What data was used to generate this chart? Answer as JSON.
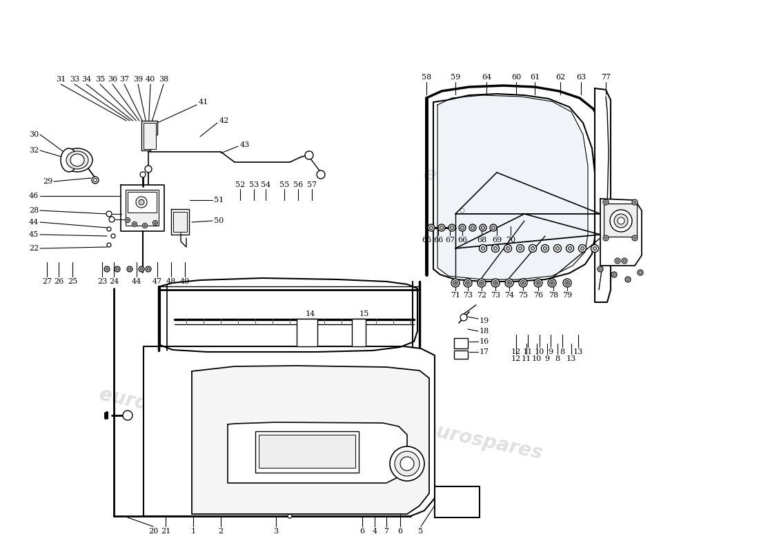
{
  "bg_color": "#ffffff",
  "watermark": "eurospares",
  "figsize": [
    11.0,
    8.0
  ],
  "dpi": 100,
  "black": "#000000",
  "gray": "#888888",
  "lightgray": "#cccccc"
}
